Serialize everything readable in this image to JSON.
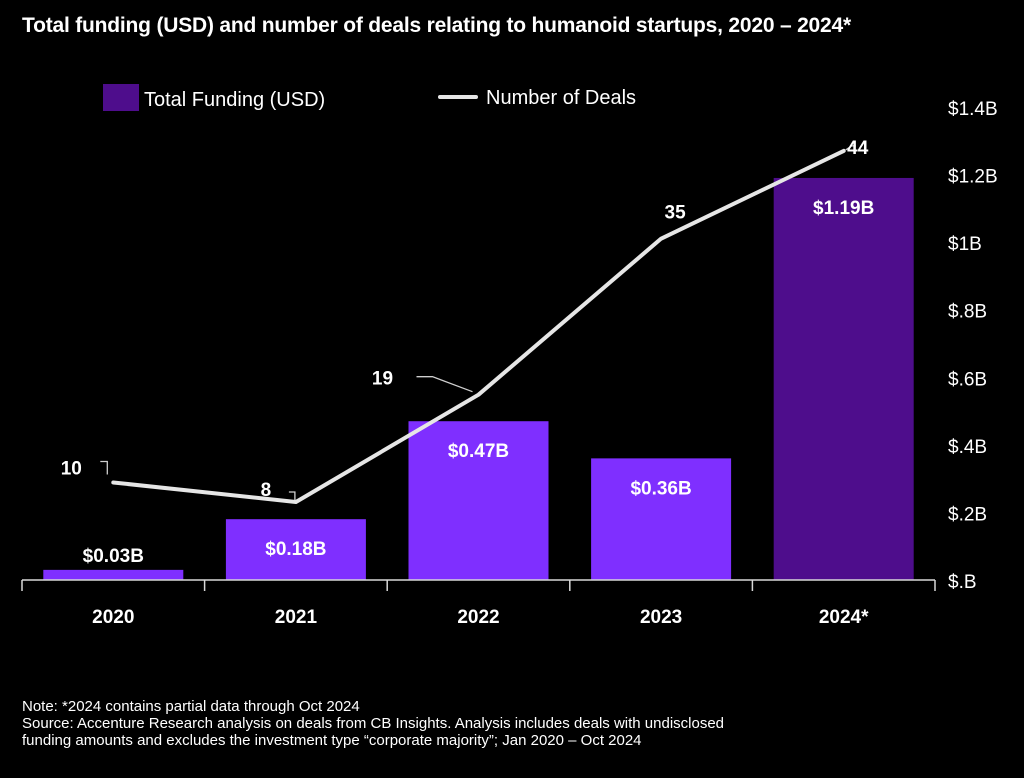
{
  "title": "Total funding (USD) and number of deals relating to humanoid startups, 2020 – 2024*",
  "chart_data": {
    "type": "bar",
    "categories": [
      "2020",
      "2021",
      "2022",
      "2023",
      "2024*"
    ],
    "series": [
      {
        "name": "Total Funding (USD)",
        "kind": "bar",
        "axis": "right",
        "values": [
          0.03,
          0.18,
          0.47,
          0.36,
          1.19
        ],
        "labels": [
          "$0.03B",
          "$0.18B",
          "$0.47B",
          "$0.36B",
          "$1.19B"
        ],
        "color": "#7f2fff",
        "highlight_color": "#4e0d8c",
        "highlight_index": 4
      },
      {
        "name": "Number of Deals",
        "kind": "line",
        "values": [
          10,
          8,
          19,
          35,
          44
        ],
        "color": "#e6e6e6"
      }
    ],
    "y_right": {
      "ticks": [
        "$1.4B",
        "$1.2B",
        "$1B",
        "$.8B",
        "$.6B",
        "$.4B",
        "$.2B",
        "$.B"
      ],
      "tick_values": [
        1.4,
        1.2,
        1.0,
        0.8,
        0.6,
        0.4,
        0.2,
        0.0
      ],
      "ylim": [
        0,
        1.4
      ]
    },
    "deals_ylim": [
      0,
      48.5
    ],
    "legend_position": "top-left",
    "grid": false
  },
  "notes": [
    "Note: *2024 contains partial data through Oct 2024",
    "Source: Accenture Research analysis on deals from CB Insights. Analysis includes deals with undisclosed",
    "funding amounts and excludes the investment type “corporate majority”; Jan 2020 – Oct 2024"
  ]
}
